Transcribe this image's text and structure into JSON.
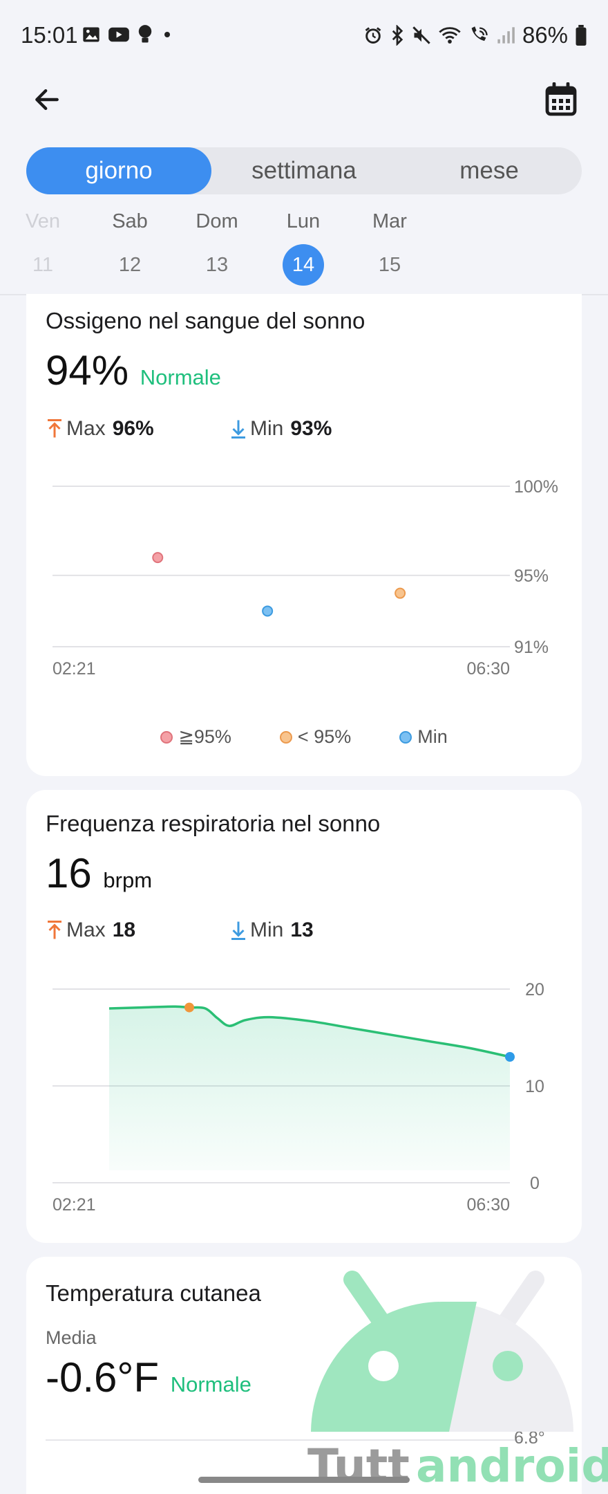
{
  "status_bar": {
    "time": "15:01",
    "battery": "86%",
    "left_icons": [
      "gallery-icon",
      "youtube-icon",
      "bulb-icon",
      "dot-icon"
    ],
    "right_icons": [
      "alarm-icon",
      "bluetooth-icon",
      "mute-icon",
      "wifi-icon",
      "wifi-call-icon",
      "signal-icon",
      "battery-icon"
    ]
  },
  "header": {
    "back_icon": "arrow-left-icon",
    "calendar_icon": "calendar-icon"
  },
  "tabs": [
    {
      "label": "giorno",
      "selected": true
    },
    {
      "label": "settimana",
      "selected": false
    },
    {
      "label": "mese",
      "selected": false
    }
  ],
  "dates": [
    {
      "name": "Ven",
      "num": "11",
      "state": "faded"
    },
    {
      "name": "Sab",
      "num": "12",
      "state": "normal"
    },
    {
      "name": "Dom",
      "num": "13",
      "state": "normal"
    },
    {
      "name": "Lun",
      "num": "14",
      "state": "selected"
    },
    {
      "name": "Mar",
      "num": "15",
      "state": "normal"
    }
  ],
  "oxygen": {
    "title": "Ossigeno nel sangue del sonno",
    "value": "94%",
    "status": "Normale",
    "max_label": "Max",
    "max_value": "96%",
    "min_label": "Min",
    "min_value": "93%",
    "legend": [
      {
        "label": "≧95%",
        "color": "#f4a1a6"
      },
      {
        "label": "< 95%",
        "color": "#f8c48e"
      },
      {
        "label": "Min",
        "color": "#7cc0f2"
      }
    ]
  },
  "respiration": {
    "title": "Frequenza respiratoria nel sonno",
    "value": "16",
    "unit": "brpm",
    "max_label": "Max",
    "max_value": "18",
    "min_label": "Min",
    "min_value": "13"
  },
  "skin_temp": {
    "title": "Temperatura cutanea",
    "media_label": "Media",
    "value": "-0.6°F",
    "status": "Normale",
    "top_tick": "6.8°"
  },
  "watermark": {
    "text_a": "Tutt",
    "text_b": "android"
  },
  "colors": {
    "accent": "#3d8ef0",
    "green": "#1fbf7d",
    "max_arrow": "#f0763a",
    "min_arrow": "#3d9be0"
  },
  "chart_data": [
    {
      "type": "scatter",
      "title": "Ossigeno nel sangue del sonno",
      "x_ticks": [
        "02:21",
        "06:30"
      ],
      "y_ticks": [
        "100%",
        "95%",
        "91%"
      ],
      "ylim": [
        91,
        100
      ],
      "series": [
        {
          "name": "≧95%",
          "color": "#f4a1a6",
          "stroke": "#e0737b",
          "points": [
            {
              "x": 0.23,
              "y": 96
            }
          ]
        },
        {
          "name": "< 95%",
          "color": "#f8c48e",
          "stroke": "#ec9a4e",
          "points": [
            {
              "x": 0.76,
              "y": 94
            }
          ]
        },
        {
          "name": "Min",
          "color": "#7cc0f2",
          "stroke": "#3d9be0",
          "points": [
            {
              "x": 0.47,
              "y": 93
            }
          ]
        }
      ]
    },
    {
      "type": "area",
      "title": "Frequenza respiratoria nel sonno",
      "x_ticks": [
        "02:21",
        "06:30"
      ],
      "y_ticks": [
        "20",
        "10",
        "0"
      ],
      "ylim": [
        0,
        20
      ],
      "x": [
        0,
        0.08,
        0.16,
        0.2,
        0.24,
        0.27,
        0.3,
        0.34,
        0.4,
        0.5,
        0.6,
        0.7,
        0.8,
        0.9,
        1.0
      ],
      "values": [
        18.0,
        18.1,
        18.2,
        18.1,
        18.0,
        17.0,
        16.2,
        16.8,
        17.1,
        16.7,
        16.0,
        15.3,
        14.6,
        13.9,
        13.0
      ],
      "markers": [
        {
          "name": "Max",
          "x": 0.2,
          "y": 18.1,
          "color": "#f0963a"
        },
        {
          "name": "Min",
          "x": 1.0,
          "y": 13.0,
          "color": "#2e9be8"
        }
      ]
    }
  ]
}
